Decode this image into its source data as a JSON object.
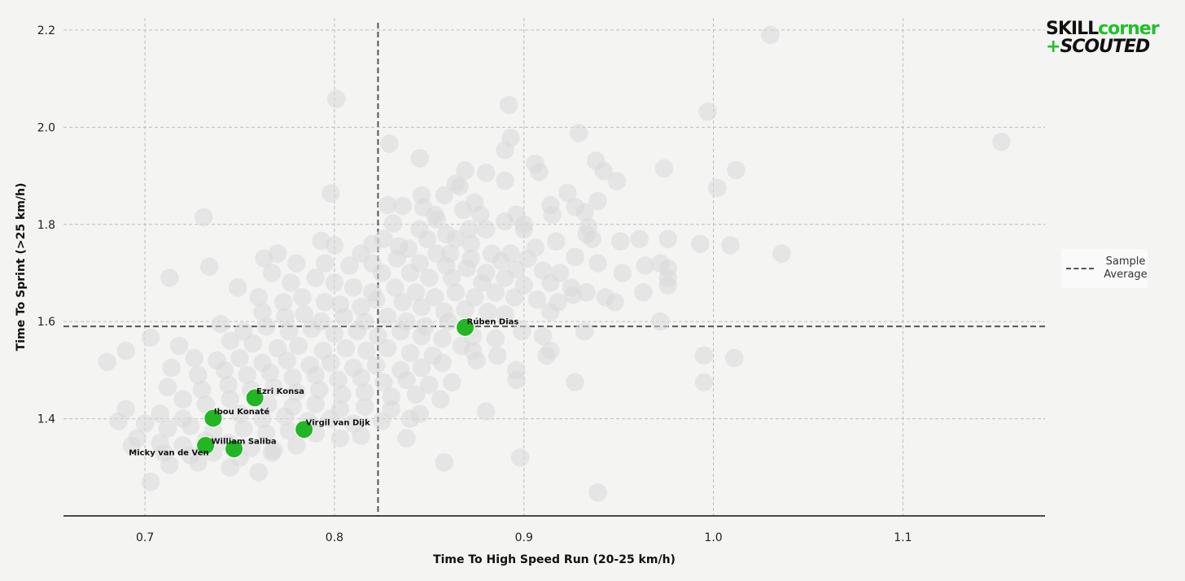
{
  "logo": {
    "part1": "SKILL",
    "part2": "corner",
    "plus": "+",
    "part3": "SCOUTED"
  },
  "legend": {
    "label_line1": "Sample",
    "label_line2": "Average"
  },
  "chart_data": {
    "type": "scatter",
    "title": "",
    "xlabel": "Time To High Speed Run (20-25 km/h)",
    "ylabel": "Time To Sprint (>25 km/h)",
    "xlim": [
      0.657,
      1.175
    ],
    "ylim": [
      1.2,
      2.225
    ],
    "xticks": [
      "0.7",
      "0.8",
      "0.9",
      "1.0",
      "1.1"
    ],
    "yticks": [
      "1.4",
      "1.6",
      "1.8",
      "2.0",
      "2.2"
    ],
    "grid": true,
    "legend_position": "right",
    "reference_lines": {
      "x_mean": 0.823,
      "y_mean": 1.59,
      "label": "Sample Average"
    },
    "colors": {
      "background_points": "#d9d9d9",
      "highlight": "#22b624",
      "reference": "#555555"
    },
    "highlighted": [
      {
        "name": "Rúben Dias",
        "x": 0.869,
        "y": 1.588
      },
      {
        "name": "Ezri Konsa",
        "x": 0.758,
        "y": 1.443
      },
      {
        "name": "Ibou Konaté",
        "x": 0.736,
        "y": 1.401
      },
      {
        "name": "Virgil van Dijk",
        "x": 0.784,
        "y": 1.378
      },
      {
        "name": "William Saliba",
        "x": 0.747,
        "y": 1.338
      },
      {
        "name": "Micky van de Ven",
        "x": 0.732,
        "y": 1.345
      }
    ],
    "points": [
      [
        1.03,
        2.19
      ],
      [
        0.801,
        2.058
      ],
      [
        0.892,
        2.046
      ],
      [
        0.997,
        2.032
      ],
      [
        1.152,
        1.97
      ],
      [
        0.893,
        1.978
      ],
      [
        0.89,
        1.953
      ],
      [
        0.829,
        1.966
      ],
      [
        0.845,
        1.936
      ],
      [
        0.929,
        1.988
      ],
      [
        0.88,
        1.906
      ],
      [
        0.869,
        1.911
      ],
      [
        0.974,
        1.915
      ],
      [
        1.012,
        1.912
      ],
      [
        0.938,
        1.931
      ],
      [
        0.942,
        1.91
      ],
      [
        0.906,
        1.925
      ],
      [
        0.908,
        1.908
      ],
      [
        0.89,
        1.89
      ],
      [
        0.949,
        1.889
      ],
      [
        0.864,
        1.884
      ],
      [
        0.866,
        1.878
      ],
      [
        0.798,
        1.864
      ],
      [
        0.923,
        1.865
      ],
      [
        1.002,
        1.875
      ],
      [
        0.858,
        1.86
      ],
      [
        0.836,
        1.838
      ],
      [
        0.847,
        1.835
      ],
      [
        0.874,
        1.845
      ],
      [
        0.914,
        1.84
      ],
      [
        0.927,
        1.836
      ],
      [
        0.932,
        1.825
      ],
      [
        0.939,
        1.848
      ],
      [
        0.868,
        1.83
      ],
      [
        0.853,
        1.82
      ],
      [
        0.854,
        1.81
      ],
      [
        0.896,
        1.82
      ],
      [
        0.89,
        1.806
      ],
      [
        0.915,
        1.82
      ],
      [
        0.9,
        1.8
      ],
      [
        0.831,
        1.802
      ],
      [
        0.845,
        1.79
      ],
      [
        0.859,
        1.78
      ],
      [
        0.88,
        1.79
      ],
      [
        0.9,
        1.79
      ],
      [
        0.826,
        1.77
      ],
      [
        0.849,
        1.77
      ],
      [
        0.864,
        1.77
      ],
      [
        0.871,
        1.79
      ],
      [
        0.872,
        1.76
      ],
      [
        0.934,
        1.795
      ],
      [
        0.933,
        1.78
      ],
      [
        0.936,
        1.77
      ],
      [
        0.961,
        1.77
      ],
      [
        0.951,
        1.765
      ],
      [
        0.976,
        1.77
      ],
      [
        0.993,
        1.76
      ],
      [
        1.009,
        1.757
      ],
      [
        0.917,
        1.765
      ],
      [
        0.906,
        1.752
      ],
      [
        0.793,
        1.766
      ],
      [
        0.8,
        1.757
      ],
      [
        0.82,
        1.76
      ],
      [
        0.834,
        1.755
      ],
      [
        0.839,
        1.75
      ],
      [
        0.854,
        1.74
      ],
      [
        0.861,
        1.74
      ],
      [
        0.872,
        1.73
      ],
      [
        0.883,
        1.74
      ],
      [
        0.893,
        1.74
      ],
      [
        0.902,
        1.73
      ],
      [
        0.927,
        1.733
      ],
      [
        0.939,
        1.72
      ],
      [
        0.972,
        1.72
      ],
      [
        0.964,
        1.715
      ],
      [
        0.976,
        1.71
      ],
      [
        1.036,
        1.74
      ],
      [
        0.814,
        1.74
      ],
      [
        0.82,
        1.72
      ],
      [
        0.833,
        1.73
      ],
      [
        0.845,
        1.72
      ],
      [
        0.859,
        1.715
      ],
      [
        0.87,
        1.71
      ],
      [
        0.88,
        1.7
      ],
      [
        0.888,
        1.725
      ],
      [
        0.896,
        1.708
      ],
      [
        0.91,
        1.705
      ],
      [
        0.919,
        1.7
      ],
      [
        0.952,
        1.7
      ],
      [
        0.976,
        1.69
      ],
      [
        0.77,
        1.74
      ],
      [
        0.763,
        1.73
      ],
      [
        0.78,
        1.72
      ],
      [
        0.795,
        1.72
      ],
      [
        0.808,
        1.715
      ],
      [
        0.825,
        1.7
      ],
      [
        0.84,
        1.7
      ],
      [
        0.85,
        1.69
      ],
      [
        0.862,
        1.69
      ],
      [
        0.878,
        1.68
      ],
      [
        0.89,
        1.69
      ],
      [
        0.9,
        1.675
      ],
      [
        0.914,
        1.68
      ],
      [
        0.925,
        1.67
      ],
      [
        0.933,
        1.66
      ],
      [
        0.943,
        1.65
      ],
      [
        0.963,
        1.66
      ],
      [
        0.976,
        1.675
      ],
      [
        0.713,
        1.69
      ],
      [
        0.734,
        1.713
      ],
      [
        0.749,
        1.67
      ],
      [
        0.767,
        1.7
      ],
      [
        0.777,
        1.68
      ],
      [
        0.79,
        1.69
      ],
      [
        0.8,
        1.68
      ],
      [
        0.81,
        1.67
      ],
      [
        0.82,
        1.66
      ],
      [
        0.832,
        1.67
      ],
      [
        0.843,
        1.66
      ],
      [
        0.853,
        1.65
      ],
      [
        0.864,
        1.66
      ],
      [
        0.874,
        1.65
      ],
      [
        0.885,
        1.66
      ],
      [
        0.895,
        1.65
      ],
      [
        0.907,
        1.645
      ],
      [
        0.918,
        1.64
      ],
      [
        0.926,
        1.655
      ],
      [
        0.948,
        1.64
      ],
      [
        0.76,
        1.65
      ],
      [
        0.773,
        1.64
      ],
      [
        0.783,
        1.65
      ],
      [
        0.795,
        1.64
      ],
      [
        0.803,
        1.635
      ],
      [
        0.814,
        1.63
      ],
      [
        0.822,
        1.645
      ],
      [
        0.836,
        1.64
      ],
      [
        0.846,
        1.63
      ],
      [
        0.858,
        1.62
      ],
      [
        0.869,
        1.625
      ],
      [
        0.881,
        1.62
      ],
      [
        0.89,
        1.615
      ],
      [
        0.914,
        1.62
      ],
      [
        0.762,
        1.62
      ],
      [
        0.774,
        1.61
      ],
      [
        0.784,
        1.615
      ],
      [
        0.793,
        1.6
      ],
      [
        0.805,
        1.61
      ],
      [
        0.816,
        1.6
      ],
      [
        0.828,
        1.61
      ],
      [
        0.838,
        1.6
      ],
      [
        0.848,
        1.59
      ],
      [
        0.86,
        1.6
      ],
      [
        0.972,
        1.6
      ],
      [
        0.74,
        1.595
      ],
      [
        0.752,
        1.58
      ],
      [
        0.764,
        1.59
      ],
      [
        0.776,
        1.58
      ],
      [
        0.788,
        1.585
      ],
      [
        0.8,
        1.575
      ],
      [
        0.812,
        1.58
      ],
      [
        0.823,
        1.57
      ],
      [
        0.835,
        1.58
      ],
      [
        0.846,
        1.57
      ],
      [
        0.857,
        1.565
      ],
      [
        0.873,
        1.57
      ],
      [
        0.885,
        1.565
      ],
      [
        0.899,
        1.58
      ],
      [
        0.932,
        1.58
      ],
      [
        0.91,
        1.57
      ],
      [
        0.703,
        1.567
      ],
      [
        0.718,
        1.55
      ],
      [
        0.745,
        1.56
      ],
      [
        0.757,
        1.555
      ],
      [
        0.77,
        1.545
      ],
      [
        0.781,
        1.55
      ],
      [
        0.794,
        1.54
      ],
      [
        0.806,
        1.545
      ],
      [
        0.817,
        1.54
      ],
      [
        0.828,
        1.545
      ],
      [
        0.84,
        1.535
      ],
      [
        0.852,
        1.53
      ],
      [
        0.867,
        1.55
      ],
      [
        0.873,
        1.54
      ],
      [
        0.886,
        1.53
      ],
      [
        0.914,
        1.54
      ],
      [
        0.69,
        1.54
      ],
      [
        0.726,
        1.525
      ],
      [
        0.738,
        1.52
      ],
      [
        0.75,
        1.525
      ],
      [
        0.762,
        1.515
      ],
      [
        0.775,
        1.52
      ],
      [
        0.787,
        1.51
      ],
      [
        0.798,
        1.515
      ],
      [
        0.81,
        1.505
      ],
      [
        0.822,
        1.51
      ],
      [
        0.835,
        1.5
      ],
      [
        0.846,
        1.505
      ],
      [
        0.857,
        1.515
      ],
      [
        0.875,
        1.52
      ],
      [
        0.896,
        1.5
      ],
      [
        0.912,
        1.53
      ],
      [
        0.995,
        1.53
      ],
      [
        1.011,
        1.525
      ],
      [
        0.68,
        1.517
      ],
      [
        0.714,
        1.505
      ],
      [
        0.728,
        1.49
      ],
      [
        0.742,
        1.5
      ],
      [
        0.754,
        1.49
      ],
      [
        0.766,
        1.495
      ],
      [
        0.778,
        1.485
      ],
      [
        0.79,
        1.49
      ],
      [
        0.802,
        1.48
      ],
      [
        0.814,
        1.485
      ],
      [
        0.826,
        1.475
      ],
      [
        0.838,
        1.48
      ],
      [
        0.85,
        1.47
      ],
      [
        0.862,
        1.475
      ],
      [
        0.896,
        1.48
      ],
      [
        0.927,
        1.475
      ],
      [
        0.995,
        1.475
      ],
      [
        0.712,
        1.465
      ],
      [
        0.73,
        1.46
      ],
      [
        0.744,
        1.47
      ],
      [
        0.756,
        1.46
      ],
      [
        0.768,
        1.465
      ],
      [
        0.78,
        1.455
      ],
      [
        0.792,
        1.46
      ],
      [
        0.804,
        1.45
      ],
      [
        0.816,
        1.455
      ],
      [
        0.83,
        1.445
      ],
      [
        0.843,
        1.45
      ],
      [
        0.856,
        1.44
      ],
      [
        0.72,
        1.44
      ],
      [
        0.732,
        1.43
      ],
      [
        0.745,
        1.44
      ],
      [
        0.765,
        1.43
      ],
      [
        0.778,
        1.425
      ],
      [
        0.79,
        1.43
      ],
      [
        0.803,
        1.42
      ],
      [
        0.816,
        1.425
      ],
      [
        0.83,
        1.42
      ],
      [
        0.845,
        1.41
      ],
      [
        0.88,
        1.415
      ],
      [
        0.69,
        1.42
      ],
      [
        0.708,
        1.41
      ],
      [
        0.72,
        1.4
      ],
      [
        0.75,
        1.41
      ],
      [
        0.762,
        1.4
      ],
      [
        0.774,
        1.405
      ],
      [
        0.786,
        1.395
      ],
      [
        0.798,
        1.4
      ],
      [
        0.81,
        1.39
      ],
      [
        0.825,
        1.395
      ],
      [
        0.84,
        1.4
      ],
      [
        0.686,
        1.395
      ],
      [
        0.7,
        1.39
      ],
      [
        0.712,
        1.38
      ],
      [
        0.724,
        1.385
      ],
      [
        0.736,
        1.375
      ],
      [
        0.752,
        1.38
      ],
      [
        0.764,
        1.37
      ],
      [
        0.776,
        1.375
      ],
      [
        0.79,
        1.37
      ],
      [
        0.803,
        1.36
      ],
      [
        0.814,
        1.365
      ],
      [
        0.838,
        1.36
      ],
      [
        0.696,
        1.36
      ],
      [
        0.708,
        1.35
      ],
      [
        0.72,
        1.345
      ],
      [
        0.732,
        1.355
      ],
      [
        0.744,
        1.35
      ],
      [
        0.756,
        1.34
      ],
      [
        0.768,
        1.335
      ],
      [
        0.78,
        1.345
      ],
      [
        0.693,
        1.345
      ],
      [
        0.71,
        1.33
      ],
      [
        0.724,
        1.325
      ],
      [
        0.736,
        1.33
      ],
      [
        0.75,
        1.32
      ],
      [
        0.767,
        1.33
      ],
      [
        0.713,
        1.305
      ],
      [
        0.728,
        1.31
      ],
      [
        0.745,
        1.3
      ],
      [
        0.76,
        1.29
      ],
      [
        0.703,
        1.27
      ],
      [
        0.858,
        1.31
      ],
      [
        0.898,
        1.32
      ],
      [
        0.939,
        1.248
      ],
      [
        0.731,
        1.815
      ],
      [
        0.846,
        1.86
      ],
      [
        0.828,
        1.84
      ],
      [
        0.877,
        1.82
      ]
    ]
  }
}
